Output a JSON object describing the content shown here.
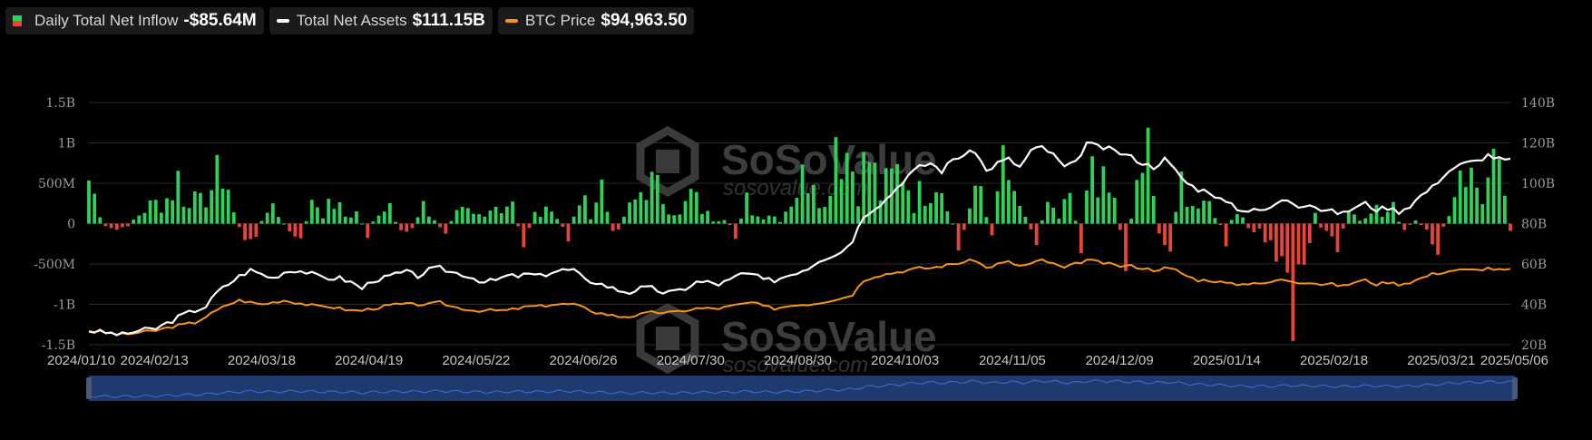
{
  "legend": {
    "inflow": {
      "label": "Daily Total Net Inflow",
      "value": "-$85.64M",
      "color_pos": "#2fd158",
      "color_neg": "#e8443a"
    },
    "assets": {
      "label": "Total Net Assets",
      "value": "$111.15B",
      "color": "#ffffff"
    },
    "btc": {
      "label": "BTC Price",
      "value": "$94,963.50",
      "color": "#f7931a"
    }
  },
  "watermark": {
    "brand": "SoSoValue",
    "url": "sosovalue.com"
  },
  "navigator": {
    "color": "#1e3a6e"
  },
  "chart_data": {
    "type": "bar+line",
    "left_axis": {
      "ticks": [
        "1.5B",
        "1B",
        "500M",
        "0",
        "-500M",
        "-1B",
        "-1.5B"
      ],
      "range": [
        -1.5,
        1.5
      ],
      "unit": "B"
    },
    "right_axis": {
      "ticks": [
        "140B",
        "120B",
        "100B",
        "80B",
        "60B",
        "40B",
        "20B"
      ],
      "range": [
        20,
        140
      ],
      "unit": "B"
    },
    "x_ticks": [
      "2024/01/10",
      "2024/02/13",
      "2024/03/18",
      "2024/04/19",
      "2024/05/22",
      "2024/06/26",
      "2024/07/30",
      "2024/08/30",
      "2024/10/03",
      "2024/11/05",
      "2024/12/09",
      "2025/01/14",
      "2025/02/18",
      "2025/03/21",
      "2025/05/06"
    ],
    "grid": true,
    "inflow_anchors_billions": [
      [
        0,
        0.6
      ],
      [
        3,
        -0.05
      ],
      [
        6,
        -0.1
      ],
      [
        10,
        0.2
      ],
      [
        14,
        0.35
      ],
      [
        16,
        0.6
      ],
      [
        18,
        0.2
      ],
      [
        20,
        0.7
      ],
      [
        22,
        0.3
      ],
      [
        24,
        0.9
      ],
      [
        26,
        0.1
      ],
      [
        28,
        -0.25
      ],
      [
        30,
        -0.15
      ],
      [
        32,
        0.25
      ],
      [
        34,
        0.1
      ],
      [
        36,
        -0.1
      ],
      [
        38,
        -0.35
      ],
      [
        40,
        0.4
      ],
      [
        42,
        0.15
      ],
      [
        44,
        0.3
      ],
      [
        46,
        0.1
      ],
      [
        48,
        0.15
      ],
      [
        50,
        -0.15
      ],
      [
        52,
        0.2
      ],
      [
        54,
        0.3
      ],
      [
        56,
        -0.2
      ],
      [
        58,
        -0.05
      ],
      [
        60,
        0.2
      ],
      [
        62,
        0.05
      ],
      [
        64,
        -0.15
      ],
      [
        66,
        0.2
      ],
      [
        68,
        0.3
      ],
      [
        70,
        0.1
      ],
      [
        72,
        0.25
      ],
      [
        74,
        0.1
      ],
      [
        76,
        0.2
      ],
      [
        78,
        -0.25
      ],
      [
        80,
        0.15
      ],
      [
        82,
        0.3
      ],
      [
        84,
        0.1
      ],
      [
        86,
        -0.2
      ],
      [
        88,
        0.35
      ],
      [
        90,
        0.15
      ],
      [
        92,
        0.55
      ],
      [
        94,
        -0.2
      ],
      [
        96,
        0.1
      ],
      [
        98,
        0.3
      ],
      [
        100,
        0.6
      ],
      [
        102,
        0.45
      ],
      [
        104,
        0.3
      ],
      [
        106,
        0.1
      ],
      [
        108,
        0.4
      ],
      [
        110,
        0.2
      ],
      [
        112,
        0.05
      ],
      [
        114,
        0.1
      ],
      [
        116,
        -0.2
      ],
      [
        118,
        0.3
      ],
      [
        120,
        0.1
      ],
      [
        122,
        0.15
      ],
      [
        124,
        0.05
      ],
      [
        126,
        0.35
      ],
      [
        128,
        0.6
      ],
      [
        130,
        0.9
      ],
      [
        132,
        0.2
      ],
      [
        134,
        1.35
      ],
      [
        136,
        1.0
      ],
      [
        138,
        0.6
      ],
      [
        140,
        0.9
      ],
      [
        142,
        0.4
      ],
      [
        144,
        0.6
      ],
      [
        146,
        0.8
      ],
      [
        148,
        0.3
      ],
      [
        150,
        0.5
      ],
      [
        152,
        0.7
      ],
      [
        154,
        0.4
      ],
      [
        156,
        -0.4
      ],
      [
        158,
        0.2
      ],
      [
        160,
        0.5
      ],
      [
        162,
        -0.3
      ],
      [
        164,
        0.9
      ],
      [
        166,
        0.3
      ],
      [
        168,
        0.1
      ],
      [
        170,
        -0.2
      ],
      [
        172,
        0.3
      ],
      [
        174,
        0.05
      ],
      [
        176,
        0.4
      ],
      [
        178,
        -0.35
      ],
      [
        180,
        1.0
      ],
      [
        182,
        0.5
      ],
      [
        184,
        0.3
      ],
      [
        186,
        -0.5
      ],
      [
        188,
        0.6
      ],
      [
        190,
        0.9
      ],
      [
        192,
        -0.3
      ],
      [
        194,
        -0.4
      ],
      [
        196,
        0.6
      ],
      [
        198,
        0.2
      ],
      [
        200,
        0.5
      ],
      [
        202,
        0.1
      ],
      [
        204,
        -0.2
      ],
      [
        206,
        0.3
      ],
      [
        208,
        -0.1
      ],
      [
        210,
        -0.1
      ],
      [
        212,
        -0.3
      ],
      [
        214,
        -0.4
      ],
      [
        216,
        -1.15
      ],
      [
        218,
        -0.7
      ],
      [
        220,
        0.1
      ],
      [
        222,
        -0.2
      ],
      [
        224,
        -0.4
      ],
      [
        226,
        0.2
      ],
      [
        228,
        0.05
      ],
      [
        230,
        0.3
      ],
      [
        232,
        0.1
      ],
      [
        234,
        0.2
      ],
      [
        236,
        -0.1
      ],
      [
        238,
        0.05
      ],
      [
        240,
        -0.15
      ],
      [
        242,
        -0.3
      ],
      [
        244,
        0.1
      ],
      [
        246,
        0.9
      ],
      [
        248,
        0.6
      ],
      [
        250,
        0.4
      ],
      [
        252,
        0.7
      ],
      [
        254,
        0.45
      ],
      [
        255,
        -0.09
      ]
    ],
    "total_net_assets_billions": [
      [
        0,
        27
      ],
      [
        3,
        26
      ],
      [
        6,
        25
      ],
      [
        9,
        27
      ],
      [
        12,
        28
      ],
      [
        15,
        32
      ],
      [
        17,
        35
      ],
      [
        19,
        37
      ],
      [
        21,
        39
      ],
      [
        23,
        46
      ],
      [
        25,
        50
      ],
      [
        27,
        54
      ],
      [
        29,
        57
      ],
      [
        31,
        55
      ],
      [
        33,
        53
      ],
      [
        35,
        56
      ],
      [
        37,
        57
      ],
      [
        39,
        56
      ],
      [
        41,
        54
      ],
      [
        43,
        53
      ],
      [
        45,
        53
      ],
      [
        47,
        51
      ],
      [
        49,
        48
      ],
      [
        51,
        52
      ],
      [
        53,
        53
      ],
      [
        55,
        55
      ],
      [
        57,
        56
      ],
      [
        59,
        54
      ],
      [
        61,
        57
      ],
      [
        63,
        58
      ],
      [
        65,
        56
      ],
      [
        67,
        55
      ],
      [
        69,
        53
      ],
      [
        71,
        51
      ],
      [
        73,
        52
      ],
      [
        75,
        54
      ],
      [
        77,
        54
      ],
      [
        79,
        55
      ],
      [
        81,
        54
      ],
      [
        83,
        56
      ],
      [
        85,
        57
      ],
      [
        87,
        57
      ],
      [
        89,
        52
      ],
      [
        91,
        51
      ],
      [
        93,
        49
      ],
      [
        95,
        47
      ],
      [
        97,
        46
      ],
      [
        99,
        48
      ],
      [
        101,
        48
      ],
      [
        103,
        46
      ],
      [
        105,
        46
      ],
      [
        107,
        48
      ],
      [
        109,
        51
      ],
      [
        111,
        51
      ],
      [
        113,
        50
      ],
      [
        115,
        52
      ],
      [
        117,
        55
      ],
      [
        119,
        55
      ],
      [
        121,
        52
      ],
      [
        123,
        52
      ],
      [
        125,
        54
      ],
      [
        127,
        56
      ],
      [
        129,
        58
      ],
      [
        131,
        62
      ],
      [
        133,
        64
      ],
      [
        135,
        66
      ],
      [
        137,
        72
      ],
      [
        139,
        84
      ],
      [
        141,
        88
      ],
      [
        143,
        92
      ],
      [
        145,
        98
      ],
      [
        147,
        104
      ],
      [
        149,
        108
      ],
      [
        151,
        110
      ],
      [
        153,
        106
      ],
      [
        155,
        112
      ],
      [
        157,
        114
      ],
      [
        159,
        116
      ],
      [
        161,
        106
      ],
      [
        163,
        110
      ],
      [
        165,
        112
      ],
      [
        167,
        108
      ],
      [
        169,
        116
      ],
      [
        171,
        118
      ],
      [
        173,
        114
      ],
      [
        175,
        108
      ],
      [
        177,
        110
      ],
      [
        179,
        120
      ],
      [
        181,
        118
      ],
      [
        183,
        117
      ],
      [
        185,
        115
      ],
      [
        187,
        113
      ],
      [
        189,
        110
      ],
      [
        191,
        108
      ],
      [
        193,
        112
      ],
      [
        195,
        106
      ],
      [
        197,
        100
      ],
      [
        199,
        97
      ],
      [
        201,
        96
      ],
      [
        203,
        92
      ],
      [
        205,
        89
      ],
      [
        207,
        86
      ],
      [
        209,
        88
      ],
      [
        211,
        86
      ],
      [
        213,
        90
      ],
      [
        215,
        92
      ],
      [
        217,
        89
      ],
      [
        219,
        90
      ],
      [
        221,
        87
      ],
      [
        223,
        86
      ],
      [
        225,
        85
      ],
      [
        227,
        88
      ],
      [
        229,
        90
      ],
      [
        231,
        87
      ],
      [
        233,
        88
      ],
      [
        235,
        86
      ],
      [
        237,
        89
      ],
      [
        239,
        94
      ],
      [
        241,
        98
      ],
      [
        243,
        104
      ],
      [
        245,
        108
      ],
      [
        247,
        110
      ],
      [
        249,
        111
      ],
      [
        251,
        114
      ],
      [
        253,
        112
      ],
      [
        255,
        111.15
      ]
    ],
    "btc_price_scaled_billions": [
      [
        0,
        27
      ],
      [
        3,
        26
      ],
      [
        6,
        25
      ],
      [
        9,
        26
      ],
      [
        12,
        27
      ],
      [
        15,
        29
      ],
      [
        17,
        30
      ],
      [
        19,
        31
      ],
      [
        21,
        34
      ],
      [
        23,
        37
      ],
      [
        25,
        40
      ],
      [
        27,
        42
      ],
      [
        29,
        41
      ],
      [
        31,
        40
      ],
      [
        33,
        41
      ],
      [
        35,
        42
      ],
      [
        37,
        41
      ],
      [
        39,
        40
      ],
      [
        41,
        39
      ],
      [
        43,
        39
      ],
      [
        45,
        38
      ],
      [
        47,
        37
      ],
      [
        49,
        37
      ],
      [
        51,
        38
      ],
      [
        53,
        39
      ],
      [
        55,
        40
      ],
      [
        57,
        40
      ],
      [
        59,
        40
      ],
      [
        61,
        40
      ],
      [
        63,
        41
      ],
      [
        65,
        39
      ],
      [
        67,
        38
      ],
      [
        69,
        37
      ],
      [
        71,
        37
      ],
      [
        73,
        37
      ],
      [
        75,
        37
      ],
      [
        77,
        38
      ],
      [
        79,
        39
      ],
      [
        81,
        39
      ],
      [
        83,
        40
      ],
      [
        85,
        40
      ],
      [
        87,
        40
      ],
      [
        89,
        38
      ],
      [
        91,
        36
      ],
      [
        93,
        35
      ],
      [
        95,
        34
      ],
      [
        97,
        34
      ],
      [
        99,
        35
      ],
      [
        101,
        36
      ],
      [
        103,
        36
      ],
      [
        105,
        36
      ],
      [
        107,
        37
      ],
      [
        109,
        38
      ],
      [
        111,
        38
      ],
      [
        113,
        38
      ],
      [
        115,
        39
      ],
      [
        117,
        40
      ],
      [
        119,
        41
      ],
      [
        121,
        39
      ],
      [
        123,
        38
      ],
      [
        125,
        39
      ],
      [
        127,
        40
      ],
      [
        129,
        40
      ],
      [
        131,
        41
      ],
      [
        133,
        42
      ],
      [
        135,
        43
      ],
      [
        137,
        45
      ],
      [
        139,
        52
      ],
      [
        141,
        54
      ],
      [
        143,
        55
      ],
      [
        145,
        56
      ],
      [
        147,
        57
      ],
      [
        149,
        58
      ],
      [
        151,
        58
      ],
      [
        153,
        59
      ],
      [
        155,
        60
      ],
      [
        157,
        61
      ],
      [
        159,
        62
      ],
      [
        161,
        58
      ],
      [
        163,
        60
      ],
      [
        165,
        61
      ],
      [
        167,
        59
      ],
      [
        169,
        60
      ],
      [
        171,
        62
      ],
      [
        173,
        60
      ],
      [
        175,
        58
      ],
      [
        177,
        60
      ],
      [
        179,
        62
      ],
      [
        181,
        61
      ],
      [
        183,
        60
      ],
      [
        185,
        59
      ],
      [
        187,
        59
      ],
      [
        189,
        58
      ],
      [
        191,
        57
      ],
      [
        193,
        58
      ],
      [
        195,
        57
      ],
      [
        197,
        54
      ],
      [
        199,
        52
      ],
      [
        201,
        52
      ],
      [
        203,
        51
      ],
      [
        205,
        50
      ],
      [
        207,
        50
      ],
      [
        209,
        51
      ],
      [
        211,
        50
      ],
      [
        213,
        52
      ],
      [
        215,
        52
      ],
      [
        217,
        51
      ],
      [
        219,
        51
      ],
      [
        221,
        50
      ],
      [
        223,
        50
      ],
      [
        225,
        49
      ],
      [
        227,
        51
      ],
      [
        229,
        52
      ],
      [
        231,
        50
      ],
      [
        233,
        51
      ],
      [
        235,
        50
      ],
      [
        237,
        51
      ],
      [
        239,
        53
      ],
      [
        241,
        55
      ],
      [
        243,
        56
      ],
      [
        245,
        57
      ],
      [
        247,
        57
      ],
      [
        249,
        57
      ],
      [
        251,
        58
      ],
      [
        253,
        57
      ],
      [
        255,
        57
      ]
    ]
  }
}
